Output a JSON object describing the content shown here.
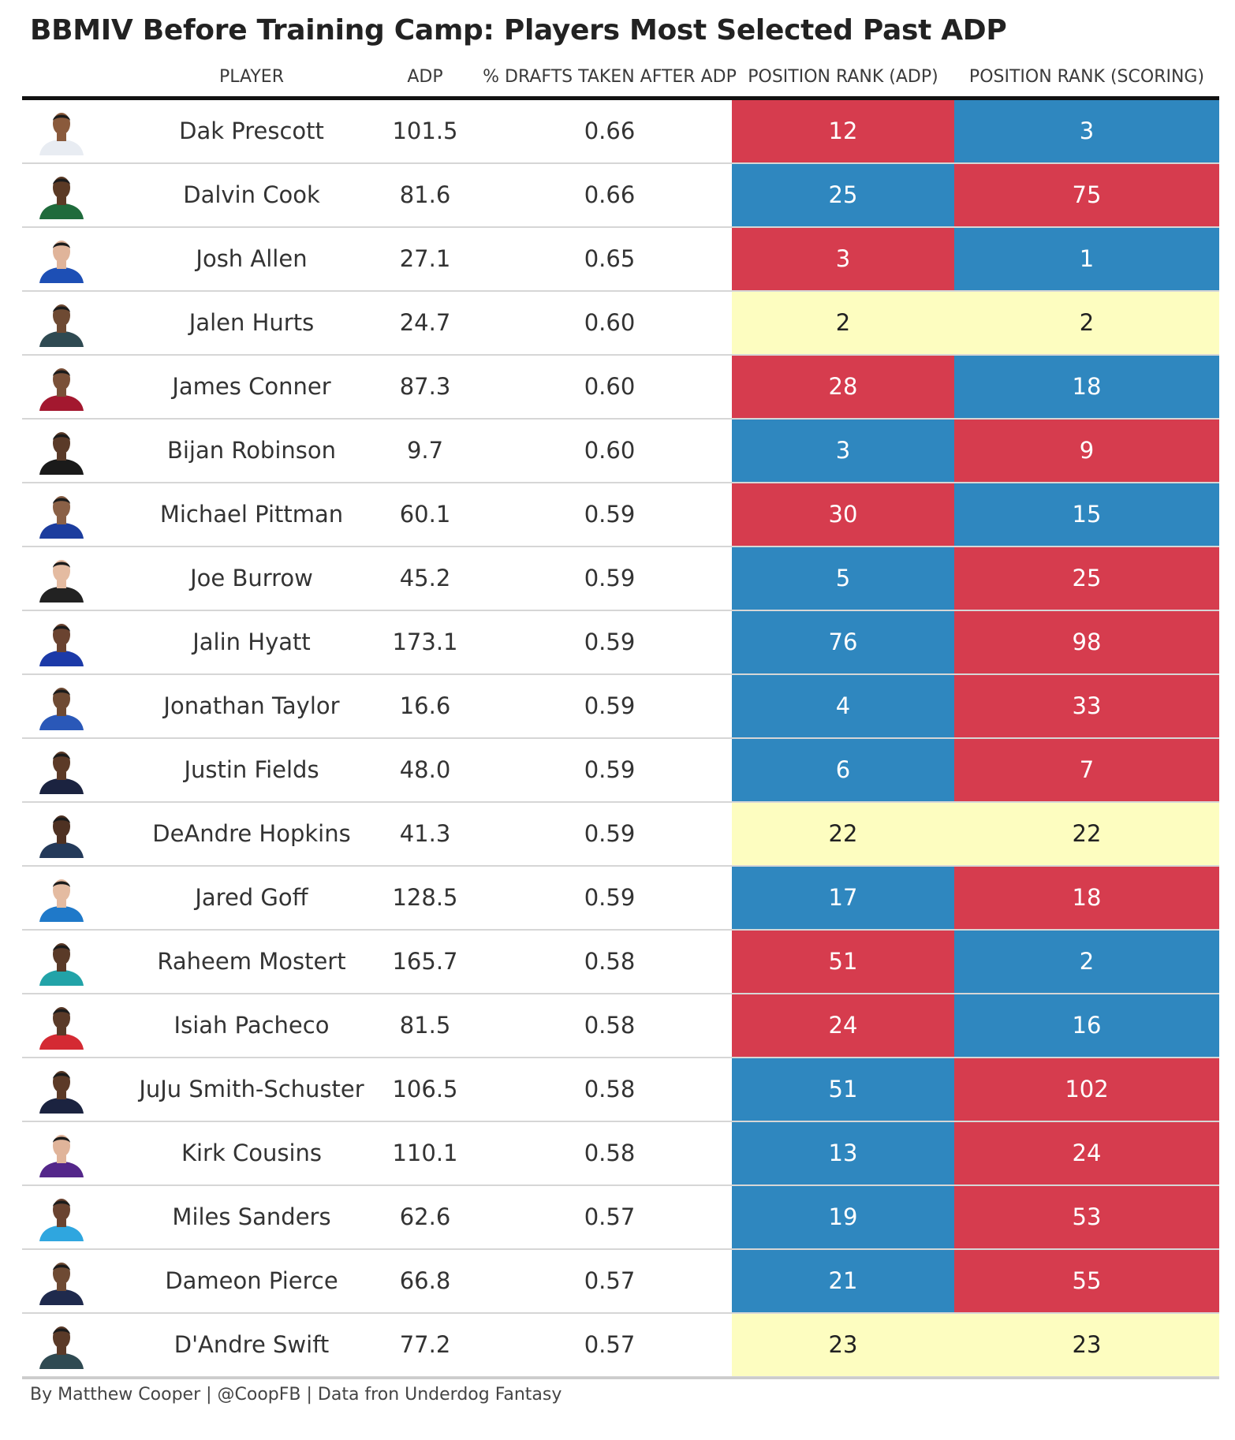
{
  "chart_data": {
    "type": "table",
    "title": "BBMIV Before Training Camp: Players Most Selected Past ADP",
    "columns": [
      "PLAYER",
      "ADP",
      "% DRAFTS TAKEN AFTER ADP",
      "POSITION RANK (ADP)",
      "POSITION RANK (SCORING)"
    ],
    "colors": {
      "worse": "#d63c4e",
      "better": "#2f87bf",
      "equal": "#fdfdc0"
    },
    "rows": [
      {
        "player": "Dak Prescott",
        "adp": "101.5",
        "pct": "0.66",
        "rank_adp": "12",
        "rank_scoring": "3",
        "adp_color": "#d63c4e",
        "scoring_color": "#2f87bf",
        "jersey": "#e8ecf2",
        "skin": "#8a5a3c"
      },
      {
        "player": "Dalvin Cook",
        "adp": "81.6",
        "pct": "0.66",
        "rank_adp": "25",
        "rank_scoring": "75",
        "adp_color": "#2f87bf",
        "scoring_color": "#d63c4e",
        "jersey": "#1f6b3c",
        "skin": "#5b3a25"
      },
      {
        "player": "Josh Allen",
        "adp": "27.1",
        "pct": "0.65",
        "rank_adp": "3",
        "rank_scoring": "1",
        "adp_color": "#d63c4e",
        "scoring_color": "#2f87bf",
        "jersey": "#1d4fb5",
        "skin": "#e0b49a"
      },
      {
        "player": "Jalen Hurts",
        "adp": "24.7",
        "pct": "0.60",
        "rank_adp": "2",
        "rank_scoring": "2",
        "adp_color": "#fdfdc0",
        "scoring_color": "#fdfdc0",
        "jersey": "#2f4a52",
        "skin": "#6e4a33"
      },
      {
        "player": "James Conner",
        "adp": "87.3",
        "pct": "0.60",
        "rank_adp": "28",
        "rank_scoring": "18",
        "adp_color": "#d63c4e",
        "scoring_color": "#2f87bf",
        "jersey": "#a3182f",
        "skin": "#7a5038"
      },
      {
        "player": "Bijan Robinson",
        "adp": "9.7",
        "pct": "0.60",
        "rank_adp": "3",
        "rank_scoring": "9",
        "adp_color": "#2f87bf",
        "scoring_color": "#d63c4e",
        "jersey": "#1a1a1a",
        "skin": "#5a3a28"
      },
      {
        "player": "Michael Pittman",
        "adp": "60.1",
        "pct": "0.59",
        "rank_adp": "30",
        "rank_scoring": "15",
        "adp_color": "#d63c4e",
        "scoring_color": "#2f87bf",
        "jersey": "#1c3d9e",
        "skin": "#8a6046"
      },
      {
        "player": "Joe Burrow",
        "adp": "45.2",
        "pct": "0.59",
        "rank_adp": "5",
        "rank_scoring": "25",
        "adp_color": "#2f87bf",
        "scoring_color": "#d63c4e",
        "jersey": "#222222",
        "skin": "#e4bba1"
      },
      {
        "player": "Jalin Hyatt",
        "adp": "173.1",
        "pct": "0.59",
        "rank_adp": "76",
        "rank_scoring": "98",
        "adp_color": "#2f87bf",
        "scoring_color": "#d63c4e",
        "jersey": "#1c3aa8",
        "skin": "#6a4330"
      },
      {
        "player": "Jonathan Taylor",
        "adp": "16.6",
        "pct": "0.59",
        "rank_adp": "4",
        "rank_scoring": "33",
        "adp_color": "#2f87bf",
        "scoring_color": "#d63c4e",
        "jersey": "#2a58b8",
        "skin": "#6e4a33"
      },
      {
        "player": "Justin Fields",
        "adp": "48.0",
        "pct": "0.59",
        "rank_adp": "6",
        "rank_scoring": "7",
        "adp_color": "#2f87bf",
        "scoring_color": "#d63c4e",
        "jersey": "#1b2340",
        "skin": "#5c3a27"
      },
      {
        "player": "DeAndre Hopkins",
        "adp": "41.3",
        "pct": "0.59",
        "rank_adp": "22",
        "rank_scoring": "22",
        "adp_color": "#fdfdc0",
        "scoring_color": "#fdfdc0",
        "jersey": "#243a5a",
        "skin": "#4e3122"
      },
      {
        "player": "Jared Goff",
        "adp": "128.5",
        "pct": "0.59",
        "rank_adp": "17",
        "rank_scoring": "18",
        "adp_color": "#2f87bf",
        "scoring_color": "#d63c4e",
        "jersey": "#1f79c9",
        "skin": "#e4bba1"
      },
      {
        "player": "Raheem Mostert",
        "adp": "165.7",
        "pct": "0.58",
        "rank_adp": "51",
        "rank_scoring": "2",
        "adp_color": "#d63c4e",
        "scoring_color": "#2f87bf",
        "jersey": "#22a3a8",
        "skin": "#5a3a28"
      },
      {
        "player": "Isiah Pacheco",
        "adp": "81.5",
        "pct": "0.58",
        "rank_adp": "24",
        "rank_scoring": "16",
        "adp_color": "#d63c4e",
        "scoring_color": "#2f87bf",
        "jersey": "#d42a33",
        "skin": "#5a3a28"
      },
      {
        "player": "JuJu Smith-Schuster",
        "adp": "106.5",
        "pct": "0.58",
        "rank_adp": "51",
        "rank_scoring": "102",
        "adp_color": "#2f87bf",
        "scoring_color": "#d63c4e",
        "jersey": "#1b2340",
        "skin": "#5c3a27"
      },
      {
        "player": "Kirk Cousins",
        "adp": "110.1",
        "pct": "0.58",
        "rank_adp": "13",
        "rank_scoring": "24",
        "adp_color": "#2f87bf",
        "scoring_color": "#d63c4e",
        "jersey": "#54278a",
        "skin": "#e0b49a"
      },
      {
        "player": "Miles Sanders",
        "adp": "62.6",
        "pct": "0.57",
        "rank_adp": "19",
        "rank_scoring": "53",
        "adp_color": "#2f87bf",
        "scoring_color": "#d63c4e",
        "jersey": "#2fa6df",
        "skin": "#6a4330"
      },
      {
        "player": "Dameon Pierce",
        "adp": "66.8",
        "pct": "0.57",
        "rank_adp": "21",
        "rank_scoring": "55",
        "adp_color": "#2f87bf",
        "scoring_color": "#d63c4e",
        "jersey": "#1f2a4d",
        "skin": "#6e4a33"
      },
      {
        "player": "D'Andre Swift",
        "adp": "77.2",
        "pct": "0.57",
        "rank_adp": "23",
        "rank_scoring": "23",
        "adp_color": "#fdfdc0",
        "scoring_color": "#fdfdc0",
        "jersey": "#2f4a52",
        "skin": "#5a3a28"
      }
    ]
  },
  "footer": "By Matthew Cooper | @CoopFB | Data fron Underdog Fantasy"
}
